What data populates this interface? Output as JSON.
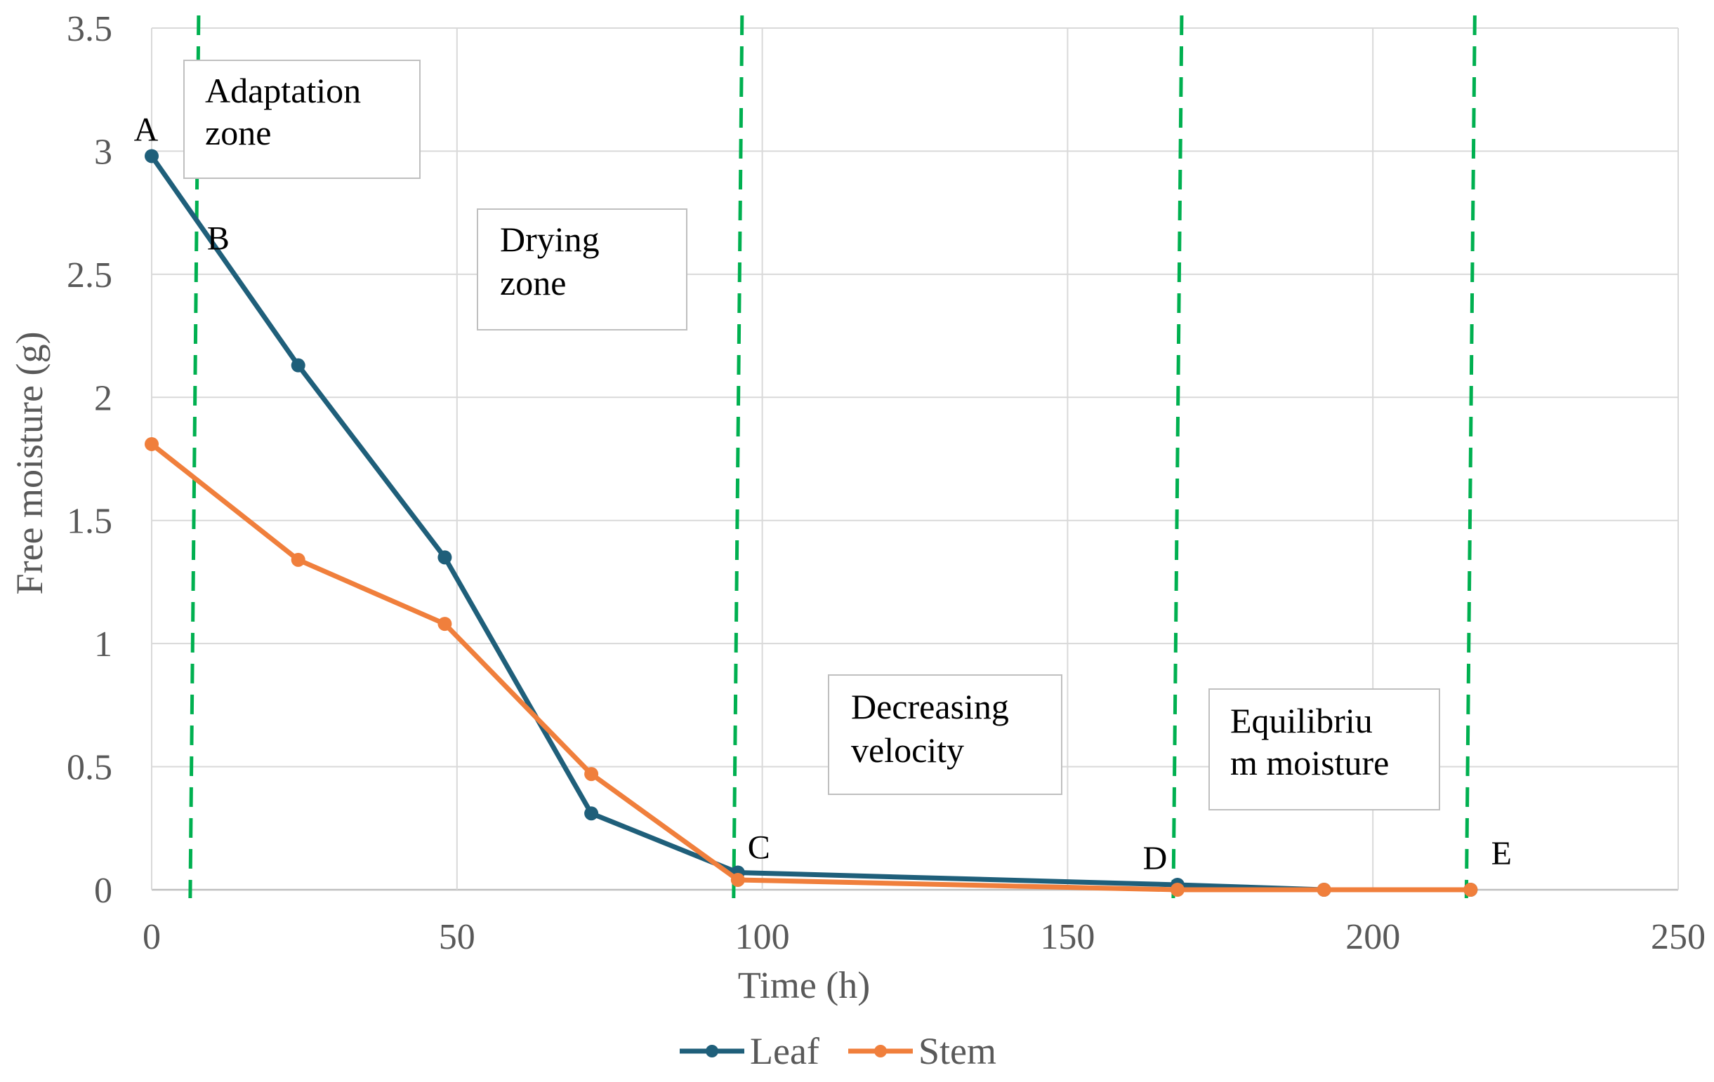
{
  "chart_data": {
    "type": "line",
    "title": "",
    "xlabel": "Time (h)",
    "ylabel": "Free moisture (g)",
    "xlim": [
      0,
      250
    ],
    "ylim": [
      0,
      3.5
    ],
    "xticks": [
      0,
      50,
      100,
      150,
      200,
      250
    ],
    "yticks": [
      0,
      0.5,
      1,
      1.5,
      2,
      2.5,
      3,
      3.5
    ],
    "xtick_labels": [
      "0",
      "50",
      "100",
      "150",
      "200",
      "250"
    ],
    "ytick_labels": [
      "0",
      "0.5",
      "1",
      "1.5",
      "2",
      "2.5",
      "3",
      "3.5"
    ],
    "grid": true,
    "legend_position": "bottom",
    "series": [
      {
        "name": "Leaf",
        "color": "#1F5F7A",
        "x": [
          0,
          24,
          48,
          72,
          96,
          168,
          192,
          216
        ],
        "values": [
          2.98,
          2.13,
          1.35,
          0.31,
          0.07,
          0.02,
          0.0,
          0.0
        ]
      },
      {
        "name": "Stem",
        "color": "#F07F3C",
        "x": [
          0,
          24,
          48,
          72,
          96,
          168,
          192,
          216
        ],
        "values": [
          1.81,
          1.34,
          1.08,
          0.47,
          0.04,
          0.0,
          0.0,
          0.0
        ]
      }
    ],
    "boundary_lines": {
      "color": "#00B050",
      "x": [
        7,
        96,
        168,
        216
      ]
    },
    "point_labels": [
      {
        "text": "A",
        "x": 0,
        "y": 2.98
      },
      {
        "text": "B",
        "x": 7,
        "y": 2.72
      },
      {
        "text": "C",
        "x": 96,
        "y": 0.07
      },
      {
        "text": "D",
        "x": 168,
        "y": 0.02
      },
      {
        "text": "E",
        "x": 216,
        "y": 0.0
      }
    ],
    "zones": [
      {
        "lines": [
          "Adaptation",
          "zone"
        ]
      },
      {
        "lines": [
          "Drying",
          "zone"
        ]
      },
      {
        "lines": [
          "Decreasing",
          "velocity"
        ]
      },
      {
        "lines": [
          "Equilibriu",
          "m moisture"
        ]
      }
    ]
  }
}
